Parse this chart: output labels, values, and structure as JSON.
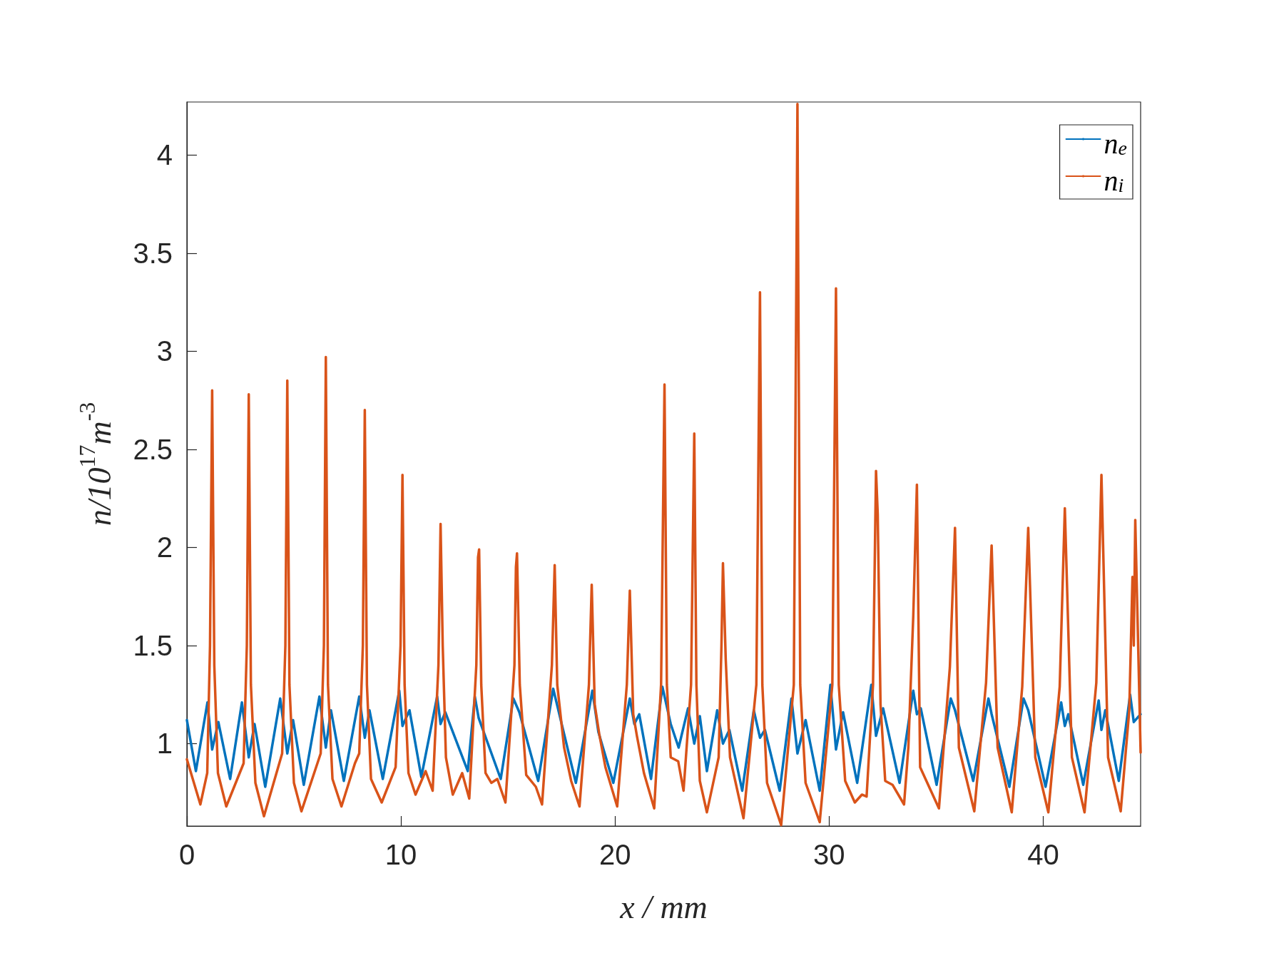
{
  "chart_data": {
    "type": "line",
    "xlabel": "x / mm",
    "ylabel": "n/10$^{17}$m$^{-3}$",
    "xlim": [
      0,
      44.55
    ],
    "xticks": [
      0,
      10,
      20,
      30,
      40
    ],
    "ylim": [
      0.58,
      4.27
    ],
    "yticks": [
      1,
      1.5,
      2,
      2.5,
      3,
      3.5,
      4
    ],
    "grid": false,
    "legend": "top right",
    "series": [
      {
        "name": "n$_{e}$",
        "color": "#0072bd",
        "x": [
          0,
          0.42,
          0.96,
          1.18,
          1.47,
          2.02,
          2.57,
          2.89,
          3.16,
          3.66,
          4.36,
          4.69,
          4.96,
          5.46,
          6.19,
          6.49,
          6.73,
          7.33,
          8.05,
          8.31,
          8.53,
          9.15,
          9.92,
          10.07,
          10.4,
          10.95,
          11.69,
          11.85,
          12.07,
          13.12,
          13.45,
          13.63,
          14.66,
          15.25,
          15.53,
          16.41,
          17.11,
          18.17,
          18.94,
          19.22,
          19.92,
          20.69,
          20.9,
          21.13,
          21.68,
          22.21,
          22.6,
          22.97,
          23.41,
          23.7,
          23.96,
          24.29,
          24.77,
          25.04,
          25.34,
          25.94,
          26.48,
          26.77,
          27.0,
          27.69,
          28.24,
          28.52,
          28.9,
          29.56,
          30.06,
          30.32,
          30.65,
          31.31,
          31.97,
          32.19,
          32.52,
          33.29,
          33.93,
          34.1,
          34.28,
          35.02,
          35.68,
          35.88,
          36.73,
          37.44,
          37.59,
          38.42,
          39.08,
          39.3,
          40.11,
          40.84,
          41.01,
          41.17,
          41.87,
          42.59,
          42.72,
          42.9,
          43.53,
          44.06,
          44.23,
          44.55
        ],
        "values": [
          1.12,
          0.86,
          1.21,
          0.97,
          1.11,
          0.82,
          1.21,
          0.93,
          1.1,
          0.78,
          1.23,
          0.95,
          1.12,
          0.79,
          1.24,
          0.98,
          1.17,
          0.81,
          1.24,
          1.03,
          1.17,
          0.82,
          1.27,
          1.09,
          1.17,
          0.83,
          1.24,
          1.1,
          1.16,
          0.86,
          1.24,
          1.13,
          0.82,
          1.23,
          1.16,
          0.81,
          1.28,
          0.8,
          1.27,
          1.06,
          0.8,
          1.23,
          1.1,
          1.15,
          0.82,
          1.29,
          1.1,
          0.98,
          1.18,
          1.0,
          1.14,
          0.86,
          1.17,
          1.0,
          1.07,
          0.76,
          1.17,
          1.03,
          1.07,
          0.76,
          1.23,
          0.95,
          1.12,
          0.76,
          1.3,
          0.97,
          1.16,
          0.8,
          1.3,
          1.04,
          1.18,
          0.8,
          1.27,
          1.15,
          1.18,
          0.79,
          1.23,
          1.17,
          0.81,
          1.23,
          1.15,
          0.78,
          1.23,
          1.17,
          0.78,
          1.21,
          1.09,
          1.15,
          0.79,
          1.22,
          1.07,
          1.17,
          0.81,
          1.25,
          1.11,
          1.15
        ]
      },
      {
        "name": "n$_{i}$",
        "color": "#d95319",
        "x": [
          0,
          0.63,
          0.95,
          1.08,
          1.18,
          1.28,
          1.45,
          1.84,
          2.65,
          2.8,
          2.89,
          2.99,
          3.2,
          3.6,
          4.45,
          4.6,
          4.69,
          4.79,
          5.0,
          5.35,
          6.25,
          6.4,
          6.49,
          6.59,
          6.8,
          7.22,
          7.85,
          8.05,
          8.22,
          8.31,
          8.41,
          8.6,
          9.1,
          9.75,
          9.98,
          10.07,
          10.17,
          10.35,
          10.68,
          11.15,
          11.48,
          11.75,
          11.85,
          11.95,
          12.1,
          12.42,
          12.86,
          13.19,
          13.52,
          13.6,
          13.65,
          13.75,
          13.95,
          14.22,
          14.5,
          14.88,
          15.3,
          15.37,
          15.42,
          15.55,
          15.85,
          16.3,
          16.59,
          17.05,
          17.18,
          17.3,
          17.62,
          17.95,
          18.34,
          18.78,
          18.91,
          19.05,
          19.26,
          19.55,
          20.1,
          20.55,
          20.69,
          20.85,
          21.02,
          21.35,
          21.83,
          22.15,
          22.31,
          22.42,
          22.6,
          22.95,
          23.2,
          23.55,
          23.7,
          23.8,
          23.96,
          24.29,
          24.84,
          24.97,
          25.04,
          25.17,
          25.37,
          26.0,
          26.6,
          26.77,
          26.88,
          27.1,
          27.76,
          28.35,
          28.52,
          28.65,
          28.9,
          29.56,
          30.15,
          30.32,
          30.45,
          30.75,
          31.2,
          31.53,
          31.75,
          32.05,
          32.19,
          32.27,
          32.4,
          32.62,
          32.96,
          33.5,
          33.7,
          33.93,
          34.1,
          34.25,
          35.13,
          35.64,
          35.88,
          36.06,
          36.78,
          37.33,
          37.59,
          37.87,
          38.53,
          39.02,
          39.3,
          39.63,
          40.24,
          40.77,
          41.01,
          41.34,
          41.93,
          42.48,
          42.72,
          43.03,
          43.62,
          44.02,
          44.17,
          44.23,
          44.3,
          44.55
        ],
        "values": [
          0.92,
          0.69,
          0.85,
          1.5,
          2.8,
          1.4,
          0.85,
          0.68,
          0.9,
          1.5,
          2.78,
          1.3,
          0.8,
          0.63,
          0.95,
          1.5,
          2.85,
          1.3,
          0.8,
          0.655,
          0.95,
          1.5,
          2.97,
          1.3,
          0.82,
          0.68,
          0.9,
          0.95,
          1.5,
          2.7,
          1.3,
          0.82,
          0.7,
          0.88,
          1.5,
          2.37,
          1.3,
          0.85,
          0.74,
          0.86,
          0.76,
          1.4,
          2.12,
          1.5,
          0.93,
          0.74,
          0.85,
          0.72,
          1.4,
          1.95,
          1.99,
          1.3,
          0.85,
          0.8,
          0.82,
          0.7,
          1.4,
          1.9,
          1.97,
          1.3,
          0.84,
          0.78,
          0.69,
          1.4,
          1.91,
          1.3,
          0.98,
          0.81,
          0.68,
          1.3,
          1.81,
          1.2,
          1.05,
          0.88,
          0.68,
          1.3,
          1.78,
          1.15,
          1.04,
          0.85,
          0.67,
          1.3,
          2.83,
          1.3,
          0.93,
          0.91,
          0.76,
          1.3,
          2.58,
          1.3,
          0.81,
          0.65,
          0.93,
          1.5,
          1.92,
          1.43,
          0.93,
          0.62,
          1.3,
          3.3,
          1.3,
          0.8,
          0.585,
          1.3,
          4.26,
          1.3,
          0.8,
          0.6,
          1.3,
          3.32,
          1.3,
          0.81,
          0.7,
          0.74,
          0.73,
          1.3,
          2.39,
          2.17,
          1.2,
          0.81,
          0.79,
          0.69,
          0.98,
          1.65,
          2.32,
          0.88,
          0.67,
          1.39,
          2.1,
          0.98,
          0.655,
          1.31,
          2.01,
          0.98,
          0.65,
          1.29,
          2.1,
          0.93,
          0.65,
          1.29,
          2.2,
          0.93,
          0.65,
          1.31,
          2.37,
          0.93,
          0.655,
          1.17,
          1.85,
          1.5,
          2.14,
          0.955
        ]
      }
    ]
  }
}
